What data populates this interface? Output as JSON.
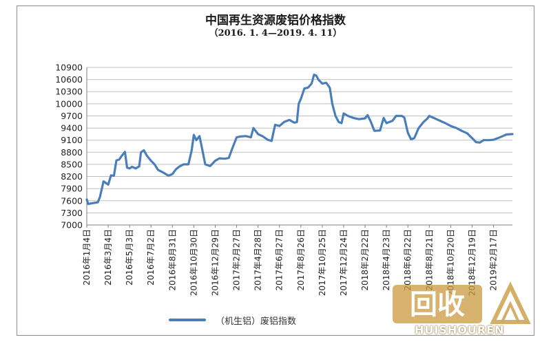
{
  "chart_data": {
    "type": "line",
    "title": "中国再生资源废铝价格指数",
    "subtitle": "（2016. 1. 4—2019. 4. 11）",
    "ylim": [
      7000,
      10900
    ],
    "yticks": [
      7000,
      7300,
      7600,
      7900,
      8200,
      8500,
      8800,
      9100,
      9400,
      9700,
      10000,
      10300,
      10600,
      10900
    ],
    "ytick_labels": [
      "7000",
      "7300",
      "7600",
      "7900",
      "8200",
      "8500",
      "8800",
      "9100",
      "9400",
      "9700",
      "10000",
      "10300",
      "10600",
      "10900"
    ],
    "xtick_labels": [
      "2016年1月4日",
      "2016年3月4日",
      "2016年5月3日",
      "2016年7月2日",
      "2016年8月31日",
      "2016年10月30日",
      "2016年12月29日",
      "2017年2月27日",
      "2017年4月28日",
      "2017年6月27日",
      "2017年8月26日",
      "2017年10月25日",
      "2017年12月24日",
      "2018年2月22日",
      "2018年4月23日",
      "2018年6月22日",
      "2018年8月21日",
      "2018年10月20日",
      "2018年12月19日",
      "2019年2月17日"
    ],
    "grid": true,
    "legend_position": "bottom",
    "series": [
      {
        "name": "（机生铝）废铝指数",
        "color": "#4a7ebb",
        "points": [
          [
            "2016-01-04",
            7630
          ],
          [
            "2016-01-08",
            7520
          ],
          [
            "2016-01-20",
            7540
          ],
          [
            "2016-02-04",
            7560
          ],
          [
            "2016-02-10",
            7700
          ],
          [
            "2016-02-20",
            8080
          ],
          [
            "2016-03-04",
            8000
          ],
          [
            "2016-03-12",
            8230
          ],
          [
            "2016-03-20",
            8220
          ],
          [
            "2016-03-27",
            8600
          ],
          [
            "2016-04-04",
            8620
          ],
          [
            "2016-04-10",
            8700
          ],
          [
            "2016-04-20",
            8810
          ],
          [
            "2016-04-26",
            8420
          ],
          [
            "2016-05-03",
            8400
          ],
          [
            "2016-05-10",
            8440
          ],
          [
            "2016-05-20",
            8400
          ],
          [
            "2016-05-30",
            8450
          ],
          [
            "2016-06-04",
            8800
          ],
          [
            "2016-06-12",
            8850
          ],
          [
            "2016-06-20",
            8720
          ],
          [
            "2016-07-02",
            8590
          ],
          [
            "2016-07-12",
            8500
          ],
          [
            "2016-07-22",
            8360
          ],
          [
            "2016-08-05",
            8300
          ],
          [
            "2016-08-20",
            8220
          ],
          [
            "2016-08-31",
            8260
          ],
          [
            "2016-09-10",
            8380
          ],
          [
            "2016-09-20",
            8450
          ],
          [
            "2016-10-01",
            8500
          ],
          [
            "2016-10-15",
            8500
          ],
          [
            "2016-10-24",
            8850
          ],
          [
            "2016-10-30",
            9230
          ],
          [
            "2016-11-06",
            9100
          ],
          [
            "2016-11-15",
            9200
          ],
          [
            "2016-11-22",
            8900
          ],
          [
            "2016-12-01",
            8500
          ],
          [
            "2016-12-15",
            8460
          ],
          [
            "2016-12-29",
            8590
          ],
          [
            "2017-01-10",
            8650
          ],
          [
            "2017-01-25",
            8640
          ],
          [
            "2017-02-05",
            8660
          ],
          [
            "2017-02-15",
            8900
          ],
          [
            "2017-02-27",
            9170
          ],
          [
            "2017-03-10",
            9190
          ],
          [
            "2017-03-25",
            9200
          ],
          [
            "2017-04-08",
            9170
          ],
          [
            "2017-04-15",
            9400
          ],
          [
            "2017-04-28",
            9250
          ],
          [
            "2017-05-10",
            9200
          ],
          [
            "2017-05-25",
            9110
          ],
          [
            "2017-06-05",
            9080
          ],
          [
            "2017-06-15",
            9480
          ],
          [
            "2017-06-27",
            9450
          ],
          [
            "2017-07-10",
            9550
          ],
          [
            "2017-07-25",
            9600
          ],
          [
            "2017-08-08",
            9530
          ],
          [
            "2017-08-15",
            9550
          ],
          [
            "2017-08-20",
            10000
          ],
          [
            "2017-08-26",
            10120
          ],
          [
            "2017-09-05",
            10380
          ],
          [
            "2017-09-15",
            10400
          ],
          [
            "2017-09-25",
            10500
          ],
          [
            "2017-10-02",
            10720
          ],
          [
            "2017-10-08",
            10700
          ],
          [
            "2017-10-14",
            10600
          ],
          [
            "2017-10-25",
            10500
          ],
          [
            "2017-11-05",
            10520
          ],
          [
            "2017-11-15",
            10400
          ],
          [
            "2017-11-22",
            10000
          ],
          [
            "2017-12-01",
            9700
          ],
          [
            "2017-12-10",
            9550
          ],
          [
            "2017-12-18",
            9520
          ],
          [
            "2017-12-24",
            9760
          ],
          [
            "2018-01-05",
            9700
          ],
          [
            "2018-01-20",
            9650
          ],
          [
            "2018-02-05",
            9620
          ],
          [
            "2018-02-22",
            9640
          ],
          [
            "2018-03-01",
            9720
          ],
          [
            "2018-03-10",
            9560
          ],
          [
            "2018-03-20",
            9330
          ],
          [
            "2018-04-05",
            9340
          ],
          [
            "2018-04-15",
            9650
          ],
          [
            "2018-04-23",
            9520
          ],
          [
            "2018-05-10",
            9580
          ],
          [
            "2018-05-20",
            9700
          ],
          [
            "2018-06-05",
            9700
          ],
          [
            "2018-06-12",
            9660
          ],
          [
            "2018-06-22",
            9280
          ],
          [
            "2018-07-01",
            9120
          ],
          [
            "2018-07-10",
            9150
          ],
          [
            "2018-07-22",
            9400
          ],
          [
            "2018-08-05",
            9550
          ],
          [
            "2018-08-15",
            9630
          ],
          [
            "2018-08-21",
            9700
          ],
          [
            "2018-09-05",
            9640
          ],
          [
            "2018-09-20",
            9580
          ],
          [
            "2018-10-05",
            9520
          ],
          [
            "2018-10-20",
            9450
          ],
          [
            "2018-11-05",
            9400
          ],
          [
            "2018-11-20",
            9330
          ],
          [
            "2018-12-05",
            9270
          ],
          [
            "2018-12-19",
            9150
          ],
          [
            "2018-12-30",
            9050
          ],
          [
            "2019-01-10",
            9040
          ],
          [
            "2019-01-20",
            9100
          ],
          [
            "2019-02-05",
            9100
          ],
          [
            "2019-02-17",
            9110
          ],
          [
            "2019-03-01",
            9150
          ],
          [
            "2019-03-15",
            9200
          ],
          [
            "2019-03-25",
            9240
          ],
          [
            "2019-04-11",
            9250
          ]
        ]
      }
    ]
  },
  "watermark": {
    "logo_text": "回收",
    "brand_text": "HUISHOUREN",
    "color": "#c99a3e"
  }
}
